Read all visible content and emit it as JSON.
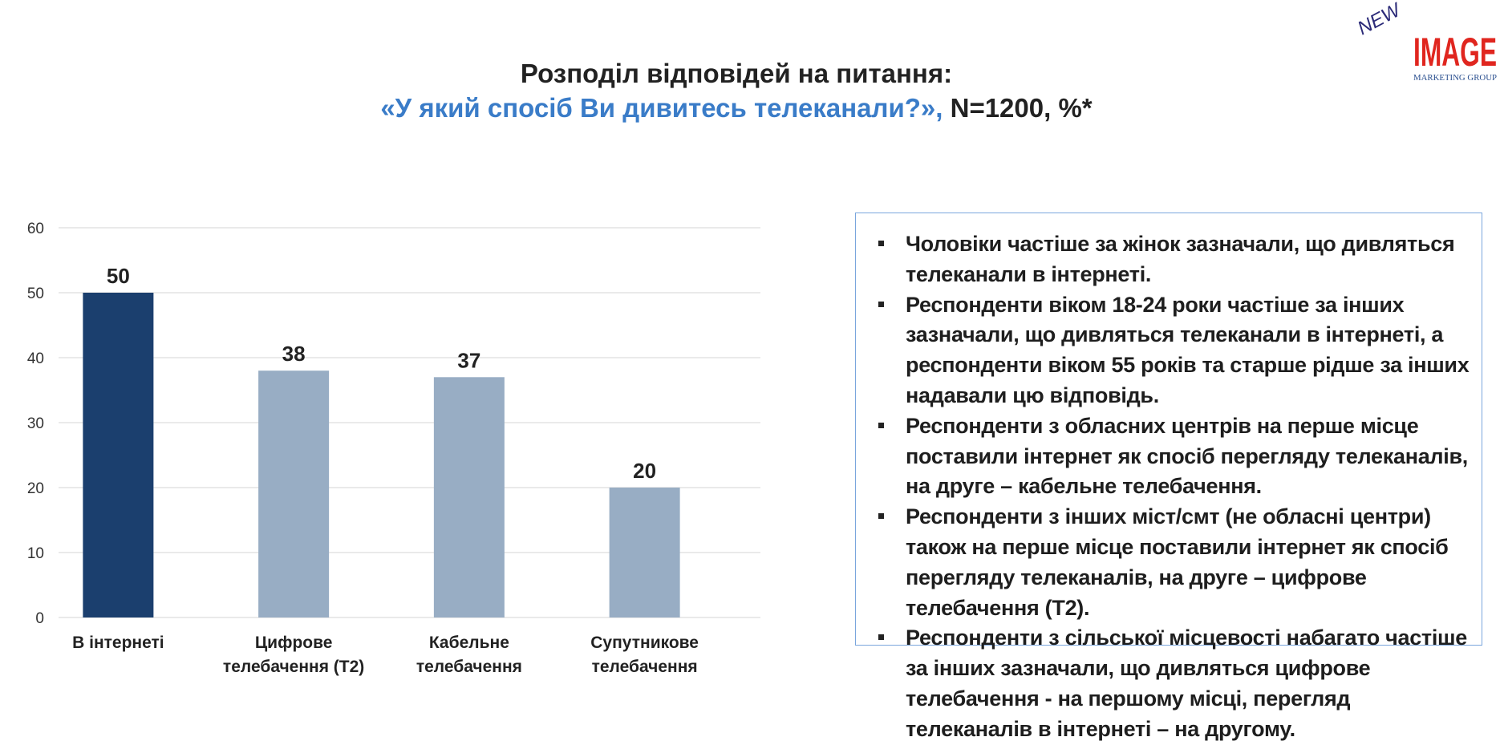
{
  "title": {
    "line1": "Розподіл відповідей на питання:",
    "question": "«У який спосіб Ви дивитесь телеканали?»,",
    "suffix": " N=1200, %*"
  },
  "logo": {
    "new": "NEW",
    "image": "IMAGE",
    "sub": "MARKETING GROUP"
  },
  "colors": {
    "highlight_bar": "#1b3f6e",
    "bar": "#98adc4",
    "question": "#3a7cc8",
    "grid": "#e3e3e3"
  },
  "chart_data": {
    "type": "bar",
    "categories": [
      "В інтернеті",
      "Цифрове телебачення (Т2)",
      "Кабельне телебачення",
      "Супутникове телебачення"
    ],
    "category_lines": [
      [
        "В інтернеті"
      ],
      [
        "Цифрове",
        "телебачення (Т2)"
      ],
      [
        "Кабельне",
        "телебачення"
      ],
      [
        "Супутникове",
        "телебачення"
      ]
    ],
    "values": [
      50,
      38,
      37,
      20
    ],
    "data_labels": [
      "50",
      "38",
      "37",
      "20"
    ],
    "highlighted_index": 0,
    "ylim": [
      0,
      60
    ],
    "yticks": [
      "0",
      "10",
      "20",
      "30",
      "40",
      "50",
      "60"
    ],
    "grid": true,
    "xlabel": "",
    "ylabel": ""
  },
  "notes": [
    "Чоловіки частіше за жінок зазначали, що дивляться телеканали в інтернеті.",
    "Респонденти віком 18-24 роки частіше за інших зазначали, що дивляться телеканали в інтернеті, а респонденти віком 55 років та старше рідше за інших надавали цю відповідь.",
    "Респонденти з обласних центрів на перше місце поставили інтернет як спосіб перегляду телеканалів, на друге – кабельне телебачення.",
    "Респонденти з інших міст/смт (не обласні центри) також на перше місце поставили інтернет як спосіб перегляду телеканалів, на друге – цифрове телебачення (Т2).",
    "Респонденти з сільської місцевості набагато частіше за інших зазначали, що дивляться цифрове телебачення - на першому місці, перегляд телеканалів в інтернеті – на другому."
  ]
}
